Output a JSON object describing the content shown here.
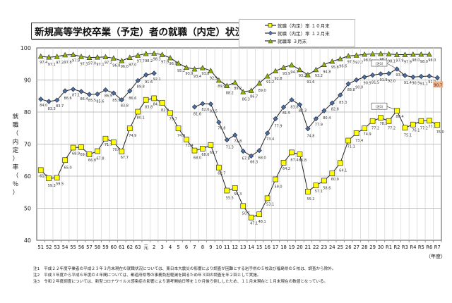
{
  "title": "新規高等学校卒業（予定）者の就職（内定）状況",
  "legend": [
    {
      "label": "就職（内定）率 １０月末",
      "marker": "square",
      "color": "#ffff00"
    },
    {
      "label": "就職（内定）率 １２月末",
      "marker": "diamond",
      "color": "#4a6fa5"
    },
    {
      "label": "就職率 ３月末",
      "marker": "triangle",
      "color": "#8db600"
    }
  ],
  "y_axis_label": "就職（内定）率（％）",
  "x_axis_unit": "（年度）",
  "callout_label": "（注3）",
  "highlight_label": {
    "value": "90.7",
    "color": "#f4b183"
  },
  "notes": [
    {
      "tag": "注1",
      "text": "平成２２年度卒業者の平成２３年３月末現在の就職状況については、東日本大震災の影響により調査が困難とする岩手県の５校及び福島県の５校は、調査から除外。"
    },
    {
      "tag": "注2",
      "text": "平成３年度から平成６年度の４年間については、都道府県等の事務負担軽減を図るため年３回の調査を年２回として実施。"
    },
    {
      "tag": "注3",
      "text": "令和２年度調査については、新型コロナウイルス感染症の影響により選考開始日等を１か月後ろ倒ししたため、１１月末現在と１月末現在の数値となっている。"
    }
  ],
  "chart_data": {
    "type": "line",
    "title": "新規高等学校卒業（予定）者の就職（内定）状況",
    "xlabel": "（年度）",
    "ylabel": "就職（内定）率（％）",
    "ylim": [
      40,
      100
    ],
    "yticks": [
      40,
      50,
      60,
      70,
      80,
      90,
      100
    ],
    "grid": true,
    "legend_position": "top-right",
    "categories": [
      "51",
      "52",
      "53",
      "54",
      "55",
      "56",
      "57",
      "58",
      "59",
      "60",
      "61",
      "62",
      "63",
      "元",
      "2",
      "3",
      "4",
      "5",
      "6",
      "7",
      "8",
      "9",
      "10",
      "11",
      "12",
      "13",
      "14",
      "15",
      "16",
      "17",
      "18",
      "19",
      "20",
      "21",
      "22",
      "23",
      "24",
      "25",
      "26",
      "27",
      "28",
      "29",
      "30",
      "R1",
      "R2",
      "R3",
      "R4",
      "R5",
      "R6",
      "R7"
    ],
    "series": [
      {
        "name": "就職（内定）率 １０月末",
        "marker": "square",
        "color": "#ffff00",
        "values": [
          61.9,
          59.3,
          59.5,
          65.0,
          68.9,
          69.0,
          66.8,
          67.8,
          71.7,
          70.6,
          67.7,
          74.9,
          80.1,
          83.8,
          84.3,
          82.9,
          79.7,
          74.9,
          71.4,
          68.0,
          68.6,
          69.7,
          62.7,
          55.5,
          56.3,
          50.7,
          47.1,
          48.1,
          53.1,
          59.0,
          64.2,
          67.4,
          66.8,
          55.2,
          57.1,
          58.6,
          60.9,
          64.1,
          71.1,
          73.4,
          74.9,
          77.2,
          78.2,
          77.2,
          80.4,
          75.1,
          76.1,
          77.2,
          77.3,
          76.0
        ]
      },
      {
        "name": "就職（内定）率 １２月末",
        "marker": "diamond",
        "color": "#4a6fa5",
        "values": [
          84.0,
          83.3,
          83.7,
          86.6,
          87.1,
          86.4,
          85.5,
          85.6,
          86.9,
          85.9,
          83.8,
          86.6,
          89.8,
          91.6,
          92.1,
          null,
          null,
          null,
          null,
          81.6,
          82.6,
          82.5,
          76.8,
          71.3,
          72.8,
          67.8,
          66.3,
          68.0,
          73.4,
          77.9,
          81.5,
          83.8,
          82.3,
          74.8,
          77.9,
          80.4,
          82.8,
          85.3,
          88.8,
          90.0,
          90.9,
          91.5,
          91.9,
          92.0,
          93.4,
          91.4,
          90.9,
          91.1,
          91.2,
          90.7
        ]
      },
      {
        "name": "就職率 ３月末",
        "marker": "triangle",
        "color": "#8db600",
        "values": [
          97.4,
          97.1,
          97.3,
          97.8,
          97.9,
          97.3,
          97.0,
          97.1,
          97.2,
          96.8,
          96.0,
          97.0,
          97.7,
          98.2,
          98.3,
          97.9,
          96.9,
          95.2,
          93.9,
          93.4,
          93.8,
          92.9,
          89.9,
          88.2,
          89.2,
          86.3,
          86.7,
          89.0,
          91.2,
          92.8,
          93.9,
          94.7,
          93.2,
          91.6,
          93.2,
          94.8,
          95.8,
          96.6,
          97.5,
          97.7,
          98.0,
          98.1,
          98.2,
          98.1,
          97.9,
          97.9,
          98.0,
          98.0,
          98.0,
          null
        ]
      }
    ],
    "annotations": [
      {
        "text": "（注3）",
        "series": "就職（内定）率 １０月末",
        "category": "R2"
      },
      {
        "text": "（注3）",
        "series": "就職（内定）率 １２月末",
        "category": "R2"
      },
      {
        "text": "90.7",
        "series": "就職（内定）率 １２月末",
        "category": "R7",
        "highlight": "#f4b183"
      }
    ]
  }
}
